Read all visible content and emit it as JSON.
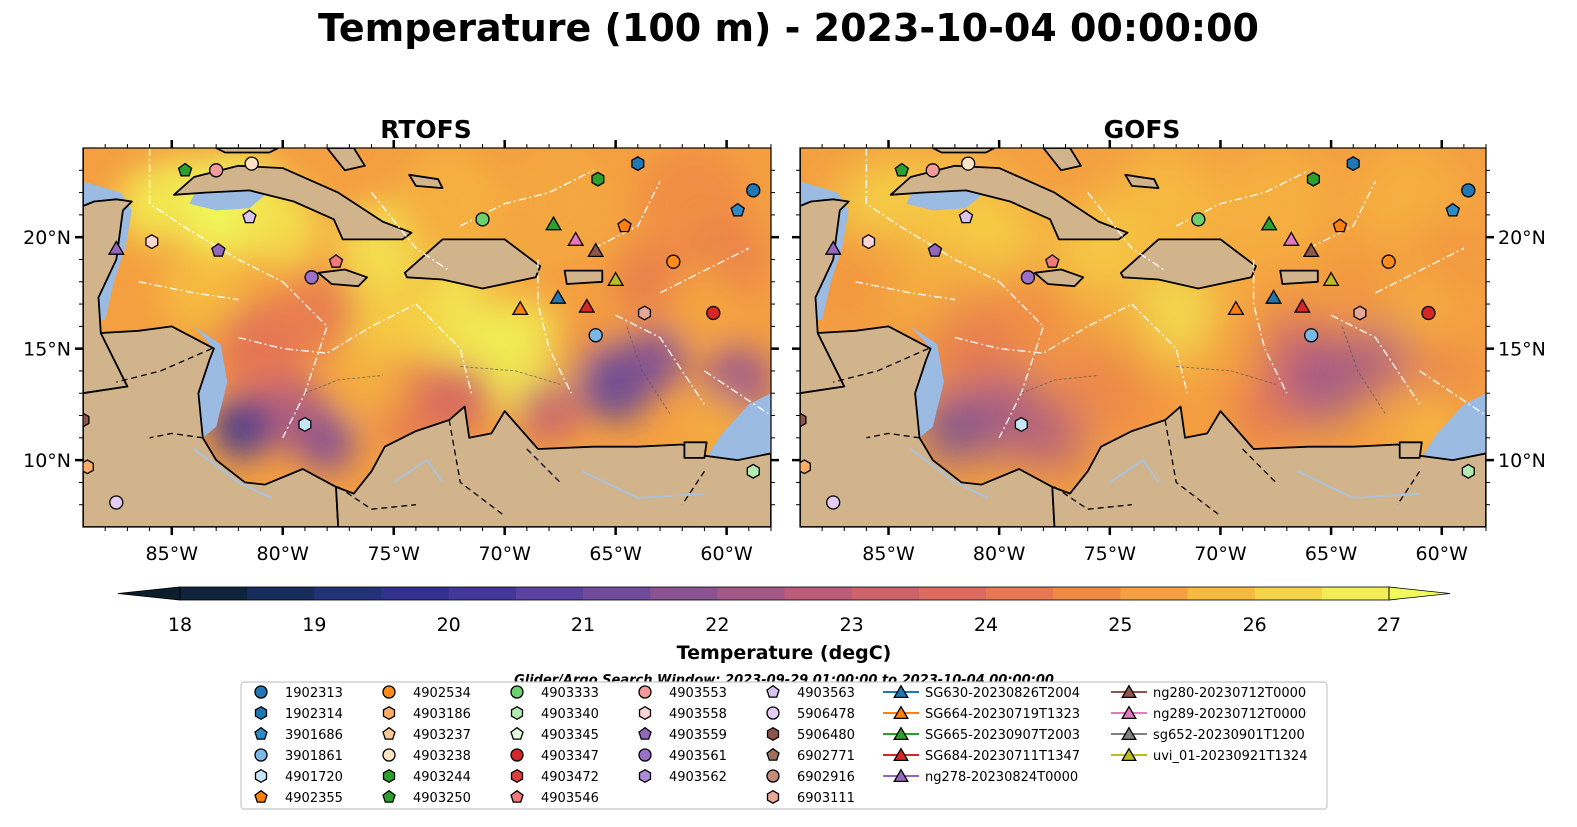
{
  "title": "Temperature (100 m) - 2023-10-04 00:00:00",
  "panels": [
    {
      "title": "RTOFS"
    },
    {
      "title": "GOFS"
    }
  ],
  "map": {
    "lon_range": [
      -89,
      -58
    ],
    "lat_range": [
      7,
      24
    ],
    "lon_ticks": [
      -85,
      -80,
      -75,
      -70,
      -65,
      -60
    ],
    "lon_tick_labels": [
      "85°W",
      "80°W",
      "75°W",
      "70°W",
      "65°W",
      "60°W"
    ],
    "lat_ticks": [
      10,
      15,
      20
    ],
    "lat_tick_labels": [
      "10°N",
      "15°N",
      "20°N"
    ],
    "colors": {
      "land": "#d2b48c",
      "shelf": "#9bbbe3",
      "pacific": "#0c2438",
      "coast": "#000000",
      "eez": "#ffffff"
    }
  },
  "colorbar": {
    "label": "Temperature (degC)",
    "min": 18,
    "max": 27,
    "step": 0.5,
    "ticks": [
      18,
      19,
      20,
      21,
      22,
      23,
      24,
      25,
      26,
      27
    ],
    "extend": "both",
    "colormap": "thermal"
  },
  "search_window": "Glider/Argo Search Window: 2023-09-29 01:00:00 to 2023-10-04 00:00:00",
  "legend": [
    {
      "label": "1902313",
      "marker": "circle",
      "color": "#1f77b4"
    },
    {
      "label": "1902314",
      "marker": "hexagon",
      "color": "#1f77b4"
    },
    {
      "label": "3901686",
      "marker": "pentagon",
      "color": "#2e8ac6"
    },
    {
      "label": "3901861",
      "marker": "circle",
      "color": "#7ab8ea"
    },
    {
      "label": "4901720",
      "marker": "hexagon",
      "color": "#c6e6f7"
    },
    {
      "label": "4902355",
      "marker": "pentagon",
      "color": "#ff7f0e"
    },
    {
      "label": "4902534",
      "marker": "circle",
      "color": "#ff8c1a"
    },
    {
      "label": "4903186",
      "marker": "hexagon",
      "color": "#ffad66"
    },
    {
      "label": "4903237",
      "marker": "pentagon",
      "color": "#ffc896"
    },
    {
      "label": "4903238",
      "marker": "circle",
      "color": "#ffe4c4"
    },
    {
      "label": "4903244",
      "marker": "hexagon",
      "color": "#2ca02c"
    },
    {
      "label": "4903250",
      "marker": "pentagon",
      "color": "#2ca02c"
    },
    {
      "label": "4903333",
      "marker": "circle",
      "color": "#6cd06c"
    },
    {
      "label": "4903340",
      "marker": "hexagon",
      "color": "#b2ecb2"
    },
    {
      "label": "4903345",
      "marker": "pentagon",
      "color": "#e4fbe4"
    },
    {
      "label": "4903347",
      "marker": "circle",
      "color": "#d62728"
    },
    {
      "label": "4903472",
      "marker": "hexagon",
      "color": "#d94040"
    },
    {
      "label": "4903546",
      "marker": "pentagon",
      "color": "#f07a7a"
    },
    {
      "label": "4903553",
      "marker": "circle",
      "color": "#f59a9a"
    },
    {
      "label": "4903558",
      "marker": "hexagon",
      "color": "#fcd4d4"
    },
    {
      "label": "4903559",
      "marker": "pentagon",
      "color": "#9467bd"
    },
    {
      "label": "4903561",
      "marker": "circle",
      "color": "#9a70c8"
    },
    {
      "label": "4903562",
      "marker": "hexagon",
      "color": "#b08ad8"
    },
    {
      "label": "4903563",
      "marker": "pentagon",
      "color": "#d9c4f0"
    },
    {
      "label": "5906478",
      "marker": "circle",
      "color": "#e6ccf5"
    },
    {
      "label": "5906480",
      "marker": "hexagon",
      "color": "#8c564b"
    },
    {
      "label": "6902771",
      "marker": "pentagon",
      "color": "#a0705f"
    },
    {
      "label": "6902916",
      "marker": "circle",
      "color": "#c58c7a"
    },
    {
      "label": "6903111",
      "marker": "hexagon",
      "color": "#e8a898"
    },
    {
      "label": "SG630-20230826T2004",
      "marker": "triangle",
      "color": "#1f77b4"
    },
    {
      "label": "SG664-20230719T1323",
      "marker": "triangle",
      "color": "#ff7f0e"
    },
    {
      "label": "SG665-20230907T2003",
      "marker": "triangle",
      "color": "#2ca02c"
    },
    {
      "label": "SG684-20230711T1347",
      "marker": "triangle",
      "color": "#d62728"
    },
    {
      "label": "ng278-20230824T0000",
      "marker": "triangle",
      "color": "#9467bd"
    },
    {
      "label": "ng280-20230712T0000",
      "marker": "triangle",
      "color": "#8c564b"
    },
    {
      "label": "ng289-20230712T0000",
      "marker": "triangle",
      "color": "#e377c2"
    },
    {
      "label": "sg652-20230901T1200",
      "marker": "triangle",
      "color": "#7f7f7f"
    },
    {
      "label": "uvi_01-20230921T1324",
      "marker": "triangle",
      "color": "#bcbd22"
    }
  ],
  "observations": [
    {
      "label": "4903250",
      "lon": -84.4,
      "lat": 23.0,
      "marker": "pentagon",
      "color": "#2ca02c"
    },
    {
      "label": "4903553",
      "lon": -83.0,
      "lat": 23.0,
      "marker": "circle",
      "color": "#f59a9a"
    },
    {
      "label": "4903238",
      "lon": -81.4,
      "lat": 23.3,
      "marker": "circle",
      "color": "#ffe4c4"
    },
    {
      "label": "1902314",
      "lon": -64.0,
      "lat": 23.3,
      "marker": "hexagon",
      "color": "#1f77b4"
    },
    {
      "label": "4903244",
      "lon": -65.8,
      "lat": 22.6,
      "marker": "hexagon",
      "color": "#2ca02c"
    },
    {
      "label": "1902313",
      "lon": -58.8,
      "lat": 22.1,
      "marker": "circle",
      "color": "#1f77b4"
    },
    {
      "label": "4903563",
      "lon": -81.5,
      "lat": 20.9,
      "marker": "pentagon",
      "color": "#d9c4f0"
    },
    {
      "label": "4903333",
      "lon": -71.0,
      "lat": 20.8,
      "marker": "circle",
      "color": "#6cd06c"
    },
    {
      "label": "4902355",
      "lon": -64.6,
      "lat": 20.5,
      "marker": "pentagon",
      "color": "#ff7f0e"
    },
    {
      "label": "3901686",
      "lon": -59.5,
      "lat": 21.2,
      "marker": "pentagon",
      "color": "#2e8ac6"
    },
    {
      "label": "SG665-20230907T2003",
      "lon": -67.8,
      "lat": 20.6,
      "marker": "triangle",
      "color": "#2ca02c"
    },
    {
      "label": "ng289-20230712T0000",
      "lon": -66.8,
      "lat": 19.9,
      "marker": "triangle",
      "color": "#e377c2"
    },
    {
      "label": "ng280-20230712T0000",
      "lon": -65.9,
      "lat": 19.4,
      "marker": "triangle",
      "color": "#8c564b"
    },
    {
      "label": "ng278-20230824T0000",
      "lon": -87.5,
      "lat": 19.5,
      "marker": "triangle",
      "color": "#9467bd"
    },
    {
      "label": "4903558",
      "lon": -85.9,
      "lat": 19.8,
      "marker": "hexagon",
      "color": "#fcd4d4"
    },
    {
      "label": "4903559",
      "lon": -82.9,
      "lat": 19.4,
      "marker": "pentagon",
      "color": "#9467bd"
    },
    {
      "label": "4903561",
      "lon": -78.7,
      "lat": 18.2,
      "marker": "circle",
      "color": "#9a70c8"
    },
    {
      "label": "4903546",
      "lon": -77.6,
      "lat": 18.9,
      "marker": "pentagon",
      "color": "#f07a7a"
    },
    {
      "label": "4902534",
      "lon": -62.4,
      "lat": 18.9,
      "marker": "circle",
      "color": "#ff8c1a"
    },
    {
      "label": "uvi_01-20230921T1324",
      "lon": -65.0,
      "lat": 18.1,
      "marker": "triangle",
      "color": "#bcbd22"
    },
    {
      "label": "SG630-20230826T2004",
      "lon": -67.6,
      "lat": 17.3,
      "marker": "triangle",
      "color": "#1f77b4"
    },
    {
      "label": "SG664-20230719T1323",
      "lon": -69.3,
      "lat": 16.8,
      "marker": "triangle",
      "color": "#ff7f0e"
    },
    {
      "label": "SG684-20230711T1347",
      "lon": -66.3,
      "lat": 16.9,
      "marker": "triangle",
      "color": "#d62728"
    },
    {
      "label": "4903347",
      "lon": -60.6,
      "lat": 16.6,
      "marker": "circle",
      "color": "#d62728"
    },
    {
      "label": "6903111",
      "lon": -63.7,
      "lat": 16.6,
      "marker": "hexagon",
      "color": "#e8a898"
    },
    {
      "label": "3901861",
      "lon": -65.9,
      "lat": 15.6,
      "marker": "circle",
      "color": "#7ab8ea"
    },
    {
      "label": "4901720",
      "lon": -79.0,
      "lat": 11.6,
      "marker": "hexagon",
      "color": "#c6e6f7"
    },
    {
      "label": "5906480",
      "lon": -89.0,
      "lat": 11.8,
      "marker": "hexagon",
      "color": "#8c564b"
    },
    {
      "label": "4903186",
      "lon": -88.8,
      "lat": 9.7,
      "marker": "hexagon",
      "color": "#ffad66"
    },
    {
      "label": "5906478",
      "lon": -87.5,
      "lat": 8.1,
      "marker": "circle",
      "color": "#e6ccf5"
    },
    {
      "label": "4903340",
      "lon": -58.8,
      "lat": 9.5,
      "marker": "hexagon",
      "color": "#b2ecb2"
    }
  ]
}
